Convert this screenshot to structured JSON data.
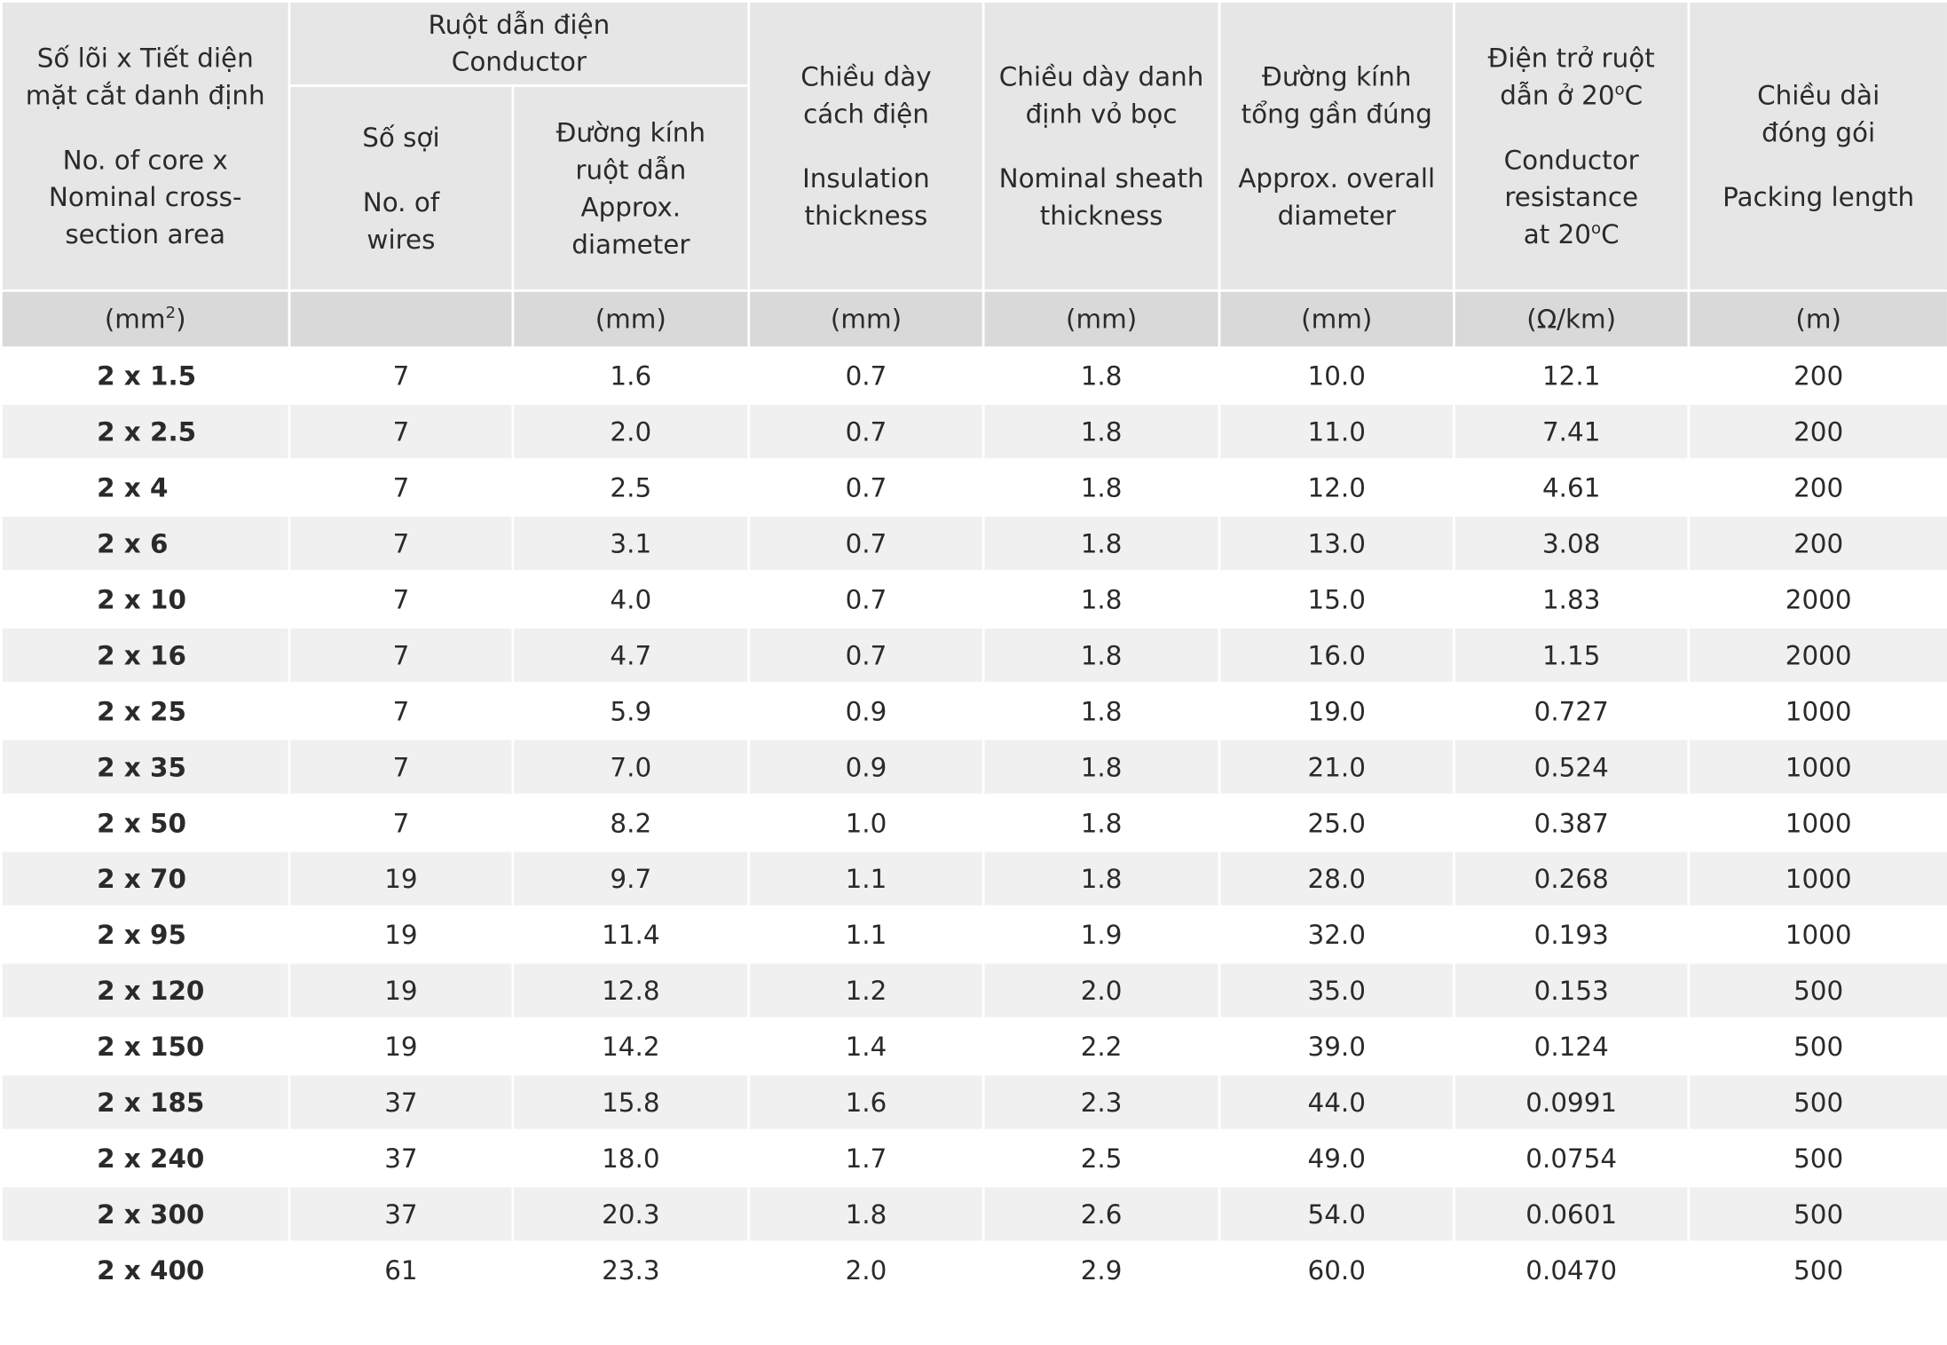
{
  "table": {
    "headers": {
      "size": {
        "vi": "Số lõi x Tiết diện\nmặt cắt danh định",
        "en": "No. of core x\nNominal cross-\nsection area",
        "unit": "(mm²)"
      },
      "conductor": {
        "vi": "Ruột dẫn điện",
        "en": "Conductor"
      },
      "wires": {
        "vi": "Số sợi",
        "en": "No. of\nwires",
        "unit": ""
      },
      "cond_diameter": {
        "vi": "Đường kính\nruột dẫn",
        "en": "Approx.\ndiameter",
        "unit": "(mm)"
      },
      "insulation": {
        "vi": "Chiều dày\ncách điện",
        "en": "Insulation\nthickness",
        "unit": "(mm)"
      },
      "sheath": {
        "vi": "Chiều dày danh\nđịnh vỏ bọc",
        "en": "Nominal sheath\nthickness",
        "unit": "(mm)"
      },
      "overall": {
        "vi": "Đường kính\ntổng gần đúng",
        "en": "Approx. overall\ndiameter",
        "unit": "(mm)"
      },
      "resistance": {
        "vi_line1": "Điện trở ruột",
        "vi_line2": "dẫn ở  20",
        "deg": "o",
        "vi_c": "C",
        "en": "Conductor\nresistance",
        "en_line3": "at  20",
        "en_deg": "o",
        "en_c": "C",
        "unit": "(Ω/km)"
      },
      "packing": {
        "vi": "Chiều dài\nđóng gói",
        "en": "Packing length",
        "unit": "(m)"
      }
    },
    "rows": [
      {
        "size": "2 x 1.5",
        "wires": "7",
        "cond_diameter": "1.6",
        "insulation": "0.7",
        "sheath": "1.8",
        "overall": "10.0",
        "resistance": "12.1",
        "packing": "200"
      },
      {
        "size": "2 x 2.5",
        "wires": "7",
        "cond_diameter": "2.0",
        "insulation": "0.7",
        "sheath": "1.8",
        "overall": "11.0",
        "resistance": "7.41",
        "packing": "200"
      },
      {
        "size": "2 x 4",
        "wires": "7",
        "cond_diameter": "2.5",
        "insulation": "0.7",
        "sheath": "1.8",
        "overall": "12.0",
        "resistance": "4.61",
        "packing": "200"
      },
      {
        "size": "2 x 6",
        "wires": "7",
        "cond_diameter": "3.1",
        "insulation": "0.7",
        "sheath": "1.8",
        "overall": "13.0",
        "resistance": "3.08",
        "packing": "200"
      },
      {
        "size": "2 x 10",
        "wires": "7",
        "cond_diameter": "4.0",
        "insulation": "0.7",
        "sheath": "1.8",
        "overall": "15.0",
        "resistance": "1.83",
        "packing": "2000"
      },
      {
        "size": "2 x 16",
        "wires": "7",
        "cond_diameter": "4.7",
        "insulation": "0.7",
        "sheath": "1.8",
        "overall": "16.0",
        "resistance": "1.15",
        "packing": "2000"
      },
      {
        "size": "2 x 25",
        "wires": "7",
        "cond_diameter": "5.9",
        "insulation": "0.9",
        "sheath": "1.8",
        "overall": "19.0",
        "resistance": "0.727",
        "packing": "1000"
      },
      {
        "size": "2 x 35",
        "wires": "7",
        "cond_diameter": "7.0",
        "insulation": "0.9",
        "sheath": "1.8",
        "overall": "21.0",
        "resistance": "0.524",
        "packing": "1000"
      },
      {
        "size": "2 x 50",
        "wires": "7",
        "cond_diameter": "8.2",
        "insulation": "1.0",
        "sheath": "1.8",
        "overall": "25.0",
        "resistance": "0.387",
        "packing": "1000"
      },
      {
        "size": "2 x 70",
        "wires": "19",
        "cond_diameter": "9.7",
        "insulation": "1.1",
        "sheath": "1.8",
        "overall": "28.0",
        "resistance": "0.268",
        "packing": "1000"
      },
      {
        "size": "2 x 95",
        "wires": "19",
        "cond_diameter": "11.4",
        "insulation": "1.1",
        "sheath": "1.9",
        "overall": "32.0",
        "resistance": "0.193",
        "packing": "1000"
      },
      {
        "size": "2 x 120",
        "wires": "19",
        "cond_diameter": "12.8",
        "insulation": "1.2",
        "sheath": "2.0",
        "overall": "35.0",
        "resistance": "0.153",
        "packing": "500"
      },
      {
        "size": "2 x 150",
        "wires": "19",
        "cond_diameter": "14.2",
        "insulation": "1.4",
        "sheath": "2.2",
        "overall": "39.0",
        "resistance": "0.124",
        "packing": "500"
      },
      {
        "size": "2 x 185",
        "wires": "37",
        "cond_diameter": "15.8",
        "insulation": "1.6",
        "sheath": "2.3",
        "overall": "44.0",
        "resistance": "0.0991",
        "packing": "500"
      },
      {
        "size": "2 x 240",
        "wires": "37",
        "cond_diameter": "18.0",
        "insulation": "1.7",
        "sheath": "2.5",
        "overall": "49.0",
        "resistance": "0.0754",
        "packing": "500"
      },
      {
        "size": "2 x 300",
        "wires": "37",
        "cond_diameter": "20.3",
        "insulation": "1.8",
        "sheath": "2.6",
        "overall": "54.0",
        "resistance": "0.0601",
        "packing": "500"
      },
      {
        "size": "2 x 400",
        "wires": "61",
        "cond_diameter": "23.3",
        "insulation": "2.0",
        "sheath": "2.9",
        "overall": "60.0",
        "resistance": "0.0470",
        "packing": "500"
      }
    ]
  },
  "colors": {
    "header_bg": "#e6e6e6",
    "unit_row_bg": "#d9d9d9",
    "stripe_bg": "#f0f0f0",
    "text": "#2a2a2a"
  }
}
